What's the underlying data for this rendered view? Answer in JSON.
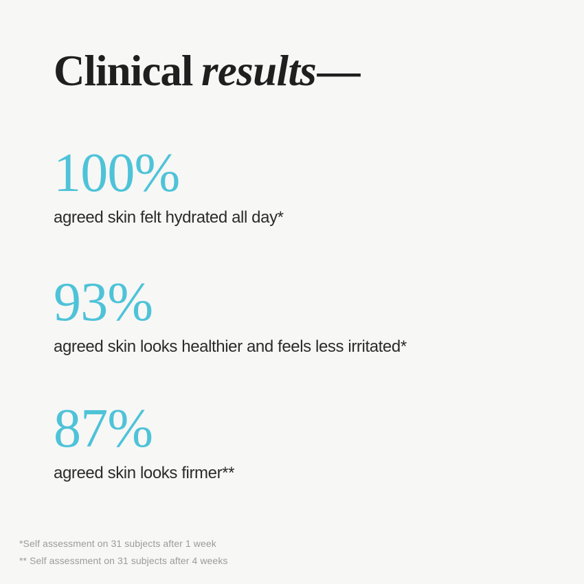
{
  "theme": {
    "background": "#f7f7f6",
    "accent": "#4ec3d8",
    "heading_color": "#1f1f1f",
    "body_color": "#2b2b2b",
    "footnote_color": "#9b9b9b"
  },
  "title": {
    "regular": "Clinical",
    "italic": "results",
    "dash": "—"
  },
  "stats": [
    {
      "value": "100%",
      "caption": "agreed skin felt hydrated all day*"
    },
    {
      "value": "93%",
      "caption": "agreed skin looks healthier and feels less irritated*"
    },
    {
      "value": "87%",
      "caption": "agreed skin looks firmer**"
    }
  ],
  "footnotes": [
    "*Self assessment on 31 subjects after 1 week",
    "** Self assessment on 31 subjects after 4 weeks"
  ]
}
